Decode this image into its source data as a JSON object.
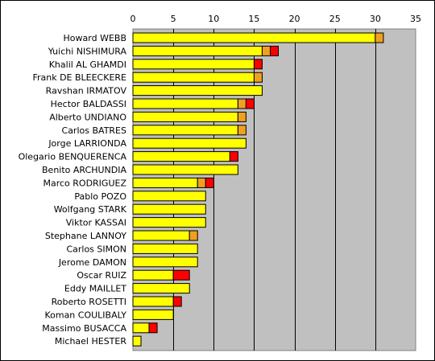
{
  "chart_data": {
    "type": "bar",
    "orientation": "horizontal",
    "stacked": true,
    "title": "",
    "xlabel": "",
    "ylabel": "",
    "xlim": [
      0,
      35
    ],
    "xticks": [
      0,
      5,
      10,
      15,
      20,
      25,
      30,
      35
    ],
    "x_axis_position": "top",
    "grid": true,
    "legend": "none",
    "categories": [
      "Howard WEBB",
      "Yuichi NISHIMURA",
      "Khalil AL GHAMDI",
      "Frank DE BLEECKERE",
      "Ravshan IRMATOV",
      "Hector BALDASSI",
      "Alberto UNDIANO",
      "Carlos BATRES",
      "Jorge LARRIONDA",
      "Olegario BENQUERENCA",
      "Benito ARCHUNDIA",
      "Marco RODRIGUEZ",
      "Pablo POZO",
      "Wolfgang STARK",
      "Viktor KASSAI",
      "Stephane LANNOY",
      "Carlos SIMON",
      "Jerome DAMON",
      "Oscar RUIZ",
      "Eddy MAILLET",
      "Roberto ROSETTI",
      "Koman COULIBALY",
      "Massimo BUSACCA",
      "Michael HESTER"
    ],
    "series": [
      {
        "color": "#ffff00",
        "values": [
          30,
          16,
          15,
          15,
          16,
          13,
          13,
          13,
          14,
          12,
          13,
          8,
          9,
          9,
          9,
          7,
          8,
          8,
          5,
          7,
          5,
          5,
          2,
          1
        ]
      },
      {
        "color": "#f0a020",
        "values": [
          1,
          1,
          0,
          1,
          0,
          1,
          1,
          1,
          0,
          0,
          0,
          1,
          0,
          0,
          0,
          1,
          0,
          0,
          0,
          0,
          0,
          0,
          0,
          0
        ]
      },
      {
        "color": "#ff0000",
        "values": [
          0,
          1,
          1,
          0,
          0,
          1,
          0,
          0,
          0,
          1,
          0,
          1,
          0,
          0,
          0,
          0,
          0,
          0,
          2,
          0,
          1,
          0,
          1,
          0
        ]
      }
    ],
    "plot_bg": "#c0c0c0"
  }
}
